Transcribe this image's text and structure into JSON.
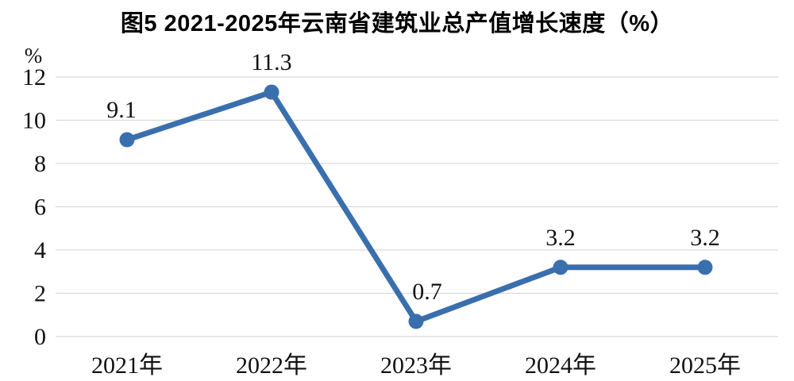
{
  "title": "图5 2021-2025年云南省建筑业总产值增长速度（%）",
  "chart_data": {
    "type": "line",
    "title": "图5 2021-2025年云南省建筑业总产值增长速度（%）",
    "categories": [
      "2021年",
      "2022年",
      "2023年",
      "2024年",
      "2025年"
    ],
    "series": [
      {
        "name": "建筑业总产值增长速度",
        "values": [
          9.1,
          11.3,
          0.7,
          3.2,
          3.2
        ]
      }
    ],
    "data_labels": [
      "9.1",
      "11.3",
      "0.7",
      "3.2",
      "3.2"
    ],
    "xlabel": "",
    "ylabel_unit": "%",
    "yticks": [
      0,
      2,
      4,
      6,
      8,
      10,
      12
    ],
    "ylim": [
      0,
      12
    ],
    "grid": true,
    "legend_position": "none",
    "colors": {
      "line": "#3A6FAD",
      "marker": "#3A6FAD",
      "grid": "#D9D9D9",
      "text": "#111111",
      "background": "#FFFFFF"
    }
  }
}
